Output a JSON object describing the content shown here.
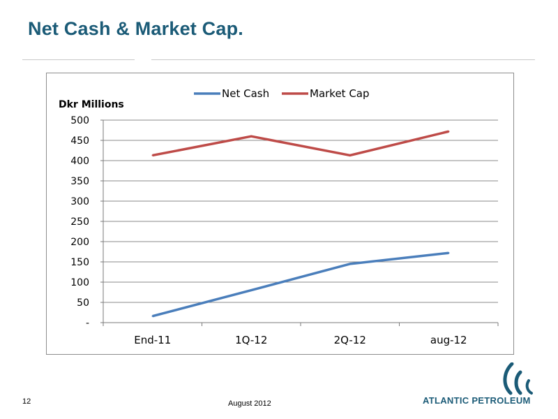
{
  "slide": {
    "title": "Net Cash & Market Cap.",
    "page_number": "12",
    "date": "August 2012",
    "company": "ATLANTIC PETROLEUM",
    "brand_color": "#1b5b77"
  },
  "chart_data": {
    "type": "line",
    "ylabel": "Dkr Millions",
    "categories": [
      "End-11",
      "1Q-12",
      "2Q-12",
      "aug-12"
    ],
    "ylim": [
      0,
      500
    ],
    "yticks": [
      0,
      50,
      100,
      150,
      200,
      250,
      300,
      350,
      400,
      450,
      500
    ],
    "ytick_labels": [
      "-",
      "50",
      "100",
      "150",
      "200",
      "250",
      "300",
      "350",
      "400",
      "450",
      "500"
    ],
    "grid": true,
    "legend_position": "top",
    "series": [
      {
        "name": "Net Cash",
        "values": [
          16,
          80,
          145,
          172
        ],
        "color": "#4a7ebb"
      },
      {
        "name": "Market Cap",
        "values": [
          413,
          460,
          413,
          472
        ],
        "color": "#be4b48"
      }
    ]
  }
}
